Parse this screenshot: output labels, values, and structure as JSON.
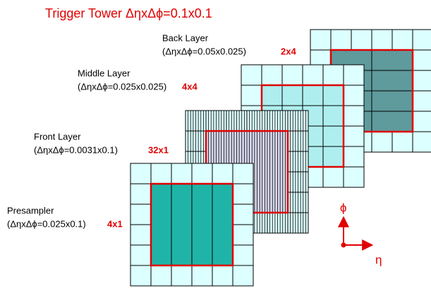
{
  "title": "Trigger Tower ΔηxΔϕ=0.1x0.1",
  "layers": [
    {
      "name": "Back Layer",
      "granularity": "(ΔηxΔϕ=0.05x0.025)",
      "cells": "2x4"
    },
    {
      "name": "Middle Layer",
      "granularity": "(ΔηxΔϕ=0.025x0.025)",
      "cells": "4x4"
    },
    {
      "name": "Front Layer",
      "granularity": "(ΔηxΔϕ=0.0031x0.1)",
      "cells": "32x1"
    },
    {
      "name": "Presampler",
      "granularity": "(ΔηxΔϕ=0.025x0.1)",
      "cells": "4x1"
    }
  ],
  "axes": {
    "phi": "ϕ",
    "eta": "η"
  }
}
